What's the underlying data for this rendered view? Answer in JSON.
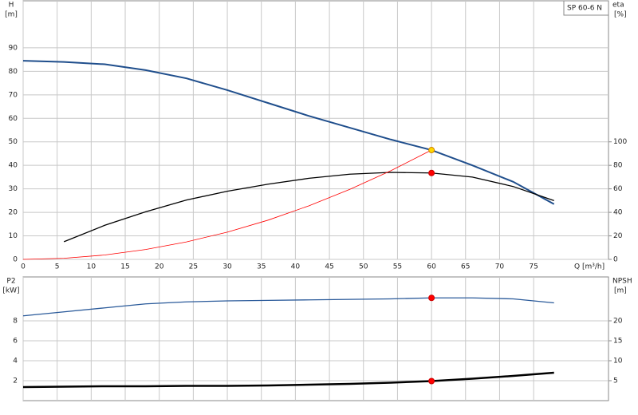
{
  "chart_data": [
    {
      "type": "line",
      "ylabel": "H",
      "ylabel_unit": "[m]",
      "y2label": "eta",
      "y2label_unit": "[%]",
      "xlabel": "Q [m³/h]",
      "annotation": "SP 60-6 N",
      "x": [
        0,
        6,
        12,
        18,
        24,
        30,
        36,
        42,
        48,
        54,
        60,
        66,
        72,
        78
      ],
      "xlim": [
        0,
        86
      ],
      "xticks": [
        0,
        5,
        10,
        15,
        20,
        25,
        30,
        35,
        40,
        45,
        50,
        55,
        60,
        65,
        70,
        75
      ],
      "ylim": [
        0,
        110
      ],
      "yticks": [
        0,
        10,
        20,
        30,
        40,
        50,
        60,
        70,
        80,
        90
      ],
      "y2lim": [
        0,
        220
      ],
      "y2ticks": [
        0,
        20,
        40,
        60,
        80,
        100
      ],
      "grid": true,
      "series": [
        {
          "color": "#1f4e8c",
          "values": [
            84.5,
            84,
            83,
            80.5,
            77,
            72,
            66.5,
            61,
            56,
            51,
            46.5,
            40,
            33,
            23.5
          ]
        },
        {
          "color": "#000000",
          "axis": "y2",
          "values": [
            null,
            15,
            29,
            40.5,
            50.5,
            58,
            64,
            69,
            72.5,
            74,
            73.5,
            70,
            62,
            50
          ]
        },
        {
          "color": "#ff0000",
          "values": [
            0,
            0.47,
            1.86,
            4.19,
            7.44,
            11.6,
            16.7,
            22.8,
            29.8,
            37.7,
            46.5,
            null,
            null,
            null
          ]
        },
        {
          "color": "#ffd700",
          "style": "point",
          "values": [
            null,
            null,
            null,
            null,
            null,
            null,
            null,
            null,
            null,
            null,
            46.5,
            null,
            null,
            null
          ]
        },
        {
          "color": "#ff0000",
          "style": "point",
          "axis": "y2",
          "values": [
            null,
            null,
            null,
            null,
            null,
            null,
            null,
            null,
            null,
            null,
            73.5,
            null,
            null,
            null
          ]
        }
      ]
    },
    {
      "type": "line",
      "ylabel": "P2",
      "ylabel_unit": "[kW]",
      "y2label": "NPSH",
      "y2label_unit": "[m]",
      "x": [
        0,
        6,
        12,
        18,
        24,
        30,
        36,
        42,
        48,
        54,
        60,
        66,
        72,
        78
      ],
      "xlim": [
        0,
        86
      ],
      "xticks": [
        0,
        5,
        10,
        15,
        20,
        25,
        30,
        35,
        40,
        45,
        50,
        55,
        60,
        65,
        70,
        75
      ],
      "xtick_labels": false,
      "ylim": [
        0,
        12.4
      ],
      "yticks": [
        2,
        4,
        6,
        8
      ],
      "y2lim": [
        0,
        31
      ],
      "y2ticks": [
        5,
        10,
        15,
        20
      ],
      "grid": true,
      "series": [
        {
          "color": "#2a5a9a",
          "values": [
            8.5,
            8.9,
            9.3,
            9.7,
            9.9,
            10.0,
            10.05,
            10.1,
            10.15,
            10.2,
            10.3,
            10.3,
            10.2,
            9.8
          ]
        },
        {
          "color": "#000000",
          "axis": "y2",
          "width": "thick",
          "values": [
            3.4,
            3.5,
            3.6,
            3.6,
            3.7,
            3.7,
            3.8,
            4.0,
            4.2,
            4.5,
            4.9,
            5.5,
            6.2,
            7.0
          ]
        },
        {
          "color": "#ff0000",
          "style": "point",
          "values": [
            null,
            null,
            null,
            null,
            null,
            null,
            null,
            null,
            null,
            null,
            10.3,
            null,
            null,
            null
          ]
        },
        {
          "color": "#ff0000",
          "style": "point",
          "axis": "y2",
          "values": [
            null,
            null,
            null,
            null,
            null,
            null,
            null,
            null,
            null,
            null,
            4.9,
            null,
            null,
            null
          ]
        }
      ]
    }
  ]
}
